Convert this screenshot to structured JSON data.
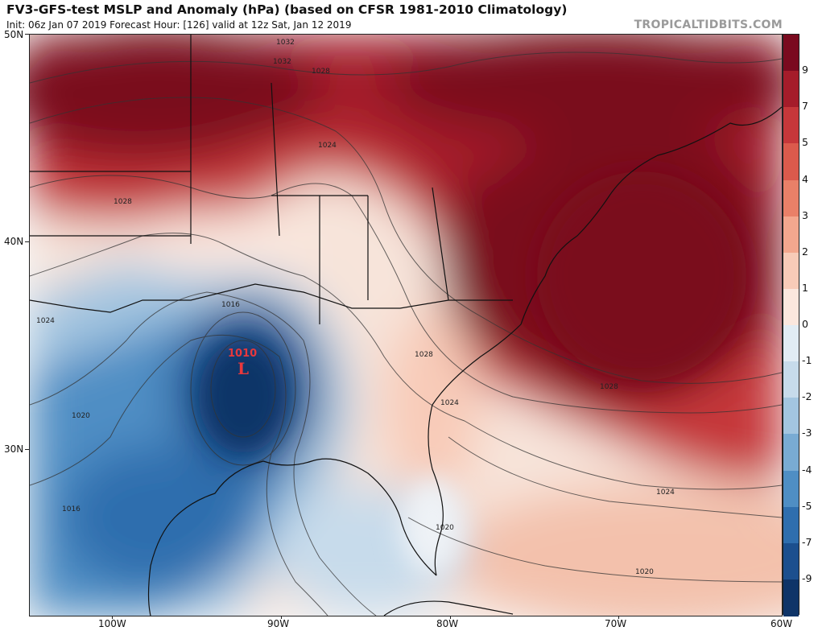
{
  "header": {
    "title": "FV3-GFS-test MSLP and Anomaly (hPa) (based on CFSR 1981-2010 Climatology)",
    "subtitle": "Init: 06z Jan 07 2019   Forecast Hour: [126]   valid at 12z Sat, Jan 12 2019",
    "brand": "TROPICALTIDBITS.COM"
  },
  "low_center": {
    "pressure": "1010",
    "symbol": "L",
    "color": "#e8383c"
  },
  "isobar_labels": [
    "1032",
    "1032",
    "1028",
    "1024",
    "1028",
    "1024",
    "1016",
    "1028",
    "1024",
    "1020",
    "1016",
    "1028",
    "1024",
    "1020",
    "1020"
  ],
  "lat_labels": [
    "50N",
    "40N",
    "30N"
  ],
  "lon_labels": [
    "100W",
    "90W",
    "80W",
    "70W",
    "60W"
  ],
  "colorbar": {
    "labels": [
      "9",
      "7",
      "5",
      "4",
      "3",
      "2",
      "1",
      "0",
      "-1",
      "-2",
      "-3",
      "-4",
      "-5",
      "-7",
      "-9"
    ],
    "colors": [
      "#7a0a1f",
      "#a51c2a",
      "#c6373a",
      "#db5a4c",
      "#e98068",
      "#f3a78e",
      "#f8cbb8",
      "#fbe7de",
      "#e2ecf4",
      "#c7dbeb",
      "#a3c5e0",
      "#79abd3",
      "#4f8ec4",
      "#2f6eae",
      "#1c4f8e",
      "#0f3468"
    ]
  },
  "legend_colors": {
    "positive_strong": "#7a0a1f",
    "negative_strong": "#0f3468",
    "neutral": "#f7f7f7"
  }
}
